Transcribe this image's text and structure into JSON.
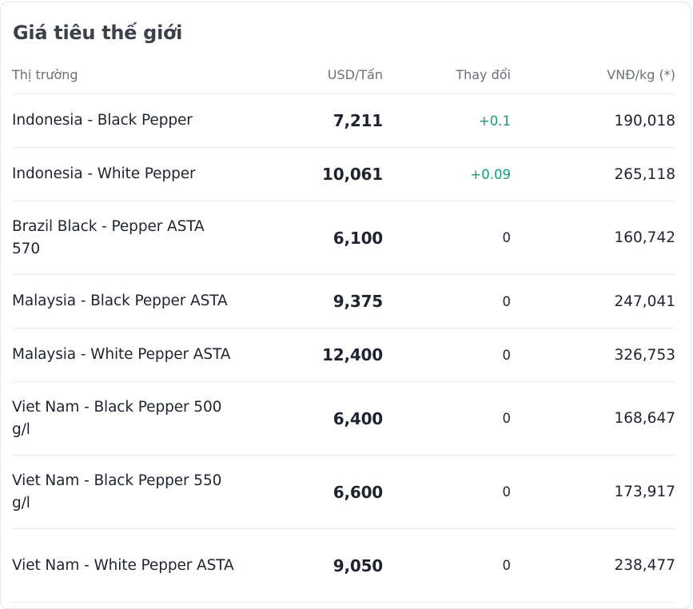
{
  "title": "Giá tiêu thế giới",
  "columns": {
    "market": "Thị trường",
    "usd": "USD/Tấn",
    "change": "Thay đổi",
    "vnd": "VNĐ/kg (*)"
  },
  "rows": [
    {
      "market": "Indonesia - Black Pepper",
      "usd": "7,211",
      "change": "+0.1",
      "trend": "up",
      "vnd": "190,018"
    },
    {
      "market": "Indonesia - White Pepper",
      "usd": "10,061",
      "change": "+0.09",
      "trend": "up",
      "vnd": "265,118"
    },
    {
      "market": "Brazil Black - Pepper ASTA 570",
      "usd": "6,100",
      "change": "0",
      "trend": "flat",
      "vnd": "160,742"
    },
    {
      "market": "Malaysia - Black Pepper ASTA",
      "usd": "9,375",
      "change": "0",
      "trend": "flat",
      "vnd": "247,041"
    },
    {
      "market": "Malaysia - White Pepper ASTA",
      "usd": "12,400",
      "change": "0",
      "trend": "flat",
      "vnd": "326,753"
    },
    {
      "market": "Viet Nam - Black Pepper 500 g/l",
      "usd": "6,400",
      "change": "0",
      "trend": "flat",
      "vnd": "168,647"
    },
    {
      "market": "Viet Nam - Black Pepper 550 g/l",
      "usd": "6,600",
      "change": "0",
      "trend": "flat",
      "vnd": "173,917"
    },
    {
      "market": "Viet Nam - White Pepper ASTA",
      "usd": "9,050",
      "change": "0",
      "trend": "flat",
      "vnd": "238,477"
    }
  ],
  "colors": {
    "positive": "#1a9a7e",
    "neutral": "#1f2430"
  }
}
